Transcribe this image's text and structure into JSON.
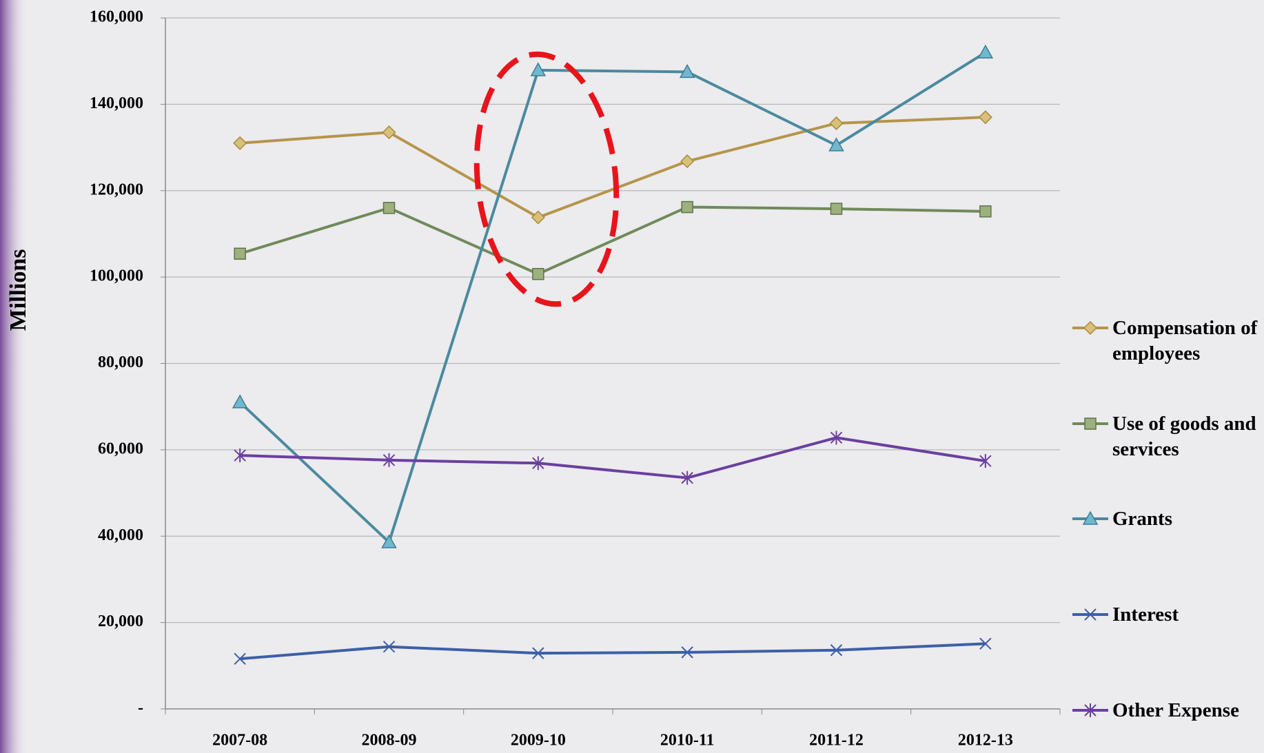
{
  "chart_data": {
    "type": "line",
    "y_label": "Millions",
    "categories": [
      "2007-08",
      "2008-09",
      "2009-10",
      "2010-11",
      "2011-12",
      "2012-13"
    ],
    "ylim": [
      0,
      160000
    ],
    "yticks": [
      {
        "value": 0,
        "label": "-"
      },
      {
        "value": 20000,
        "label": "20,000"
      },
      {
        "value": 40000,
        "label": "40,000"
      },
      {
        "value": 60000,
        "label": "60,000"
      },
      {
        "value": 80000,
        "label": "80,000"
      },
      {
        "value": 100000,
        "label": "100,000"
      },
      {
        "value": 120000,
        "label": "120,000"
      },
      {
        "value": 140000,
        "label": "140,000"
      },
      {
        "value": 160000,
        "label": "160,000"
      }
    ],
    "grid": true,
    "legend": "right",
    "series": [
      {
        "name": "Compensation of employees",
        "color": "#b5954a",
        "marker": "diamond",
        "values": [
          131000,
          133500,
          113800,
          126800,
          135600,
          137000
        ]
      },
      {
        "name": "Use of goods and services",
        "color": "#6f8a5a",
        "marker": "square",
        "values": [
          105400,
          116000,
          100700,
          116200,
          115800,
          115200
        ]
      },
      {
        "name": "Grants",
        "color": "#4a8a9f",
        "marker": "triangle",
        "values": [
          71000,
          38600,
          147900,
          147500,
          130500,
          152000
        ]
      },
      {
        "name": "Interest",
        "color": "#3d5fa8",
        "marker": "x",
        "values": [
          11600,
          14400,
          12900,
          13100,
          13600,
          15100
        ]
      },
      {
        "name": "Other Expense",
        "color": "#6b3fa0",
        "marker": "star",
        "values": [
          58700,
          57600,
          56900,
          53500,
          62800,
          57400
        ]
      }
    ]
  }
}
